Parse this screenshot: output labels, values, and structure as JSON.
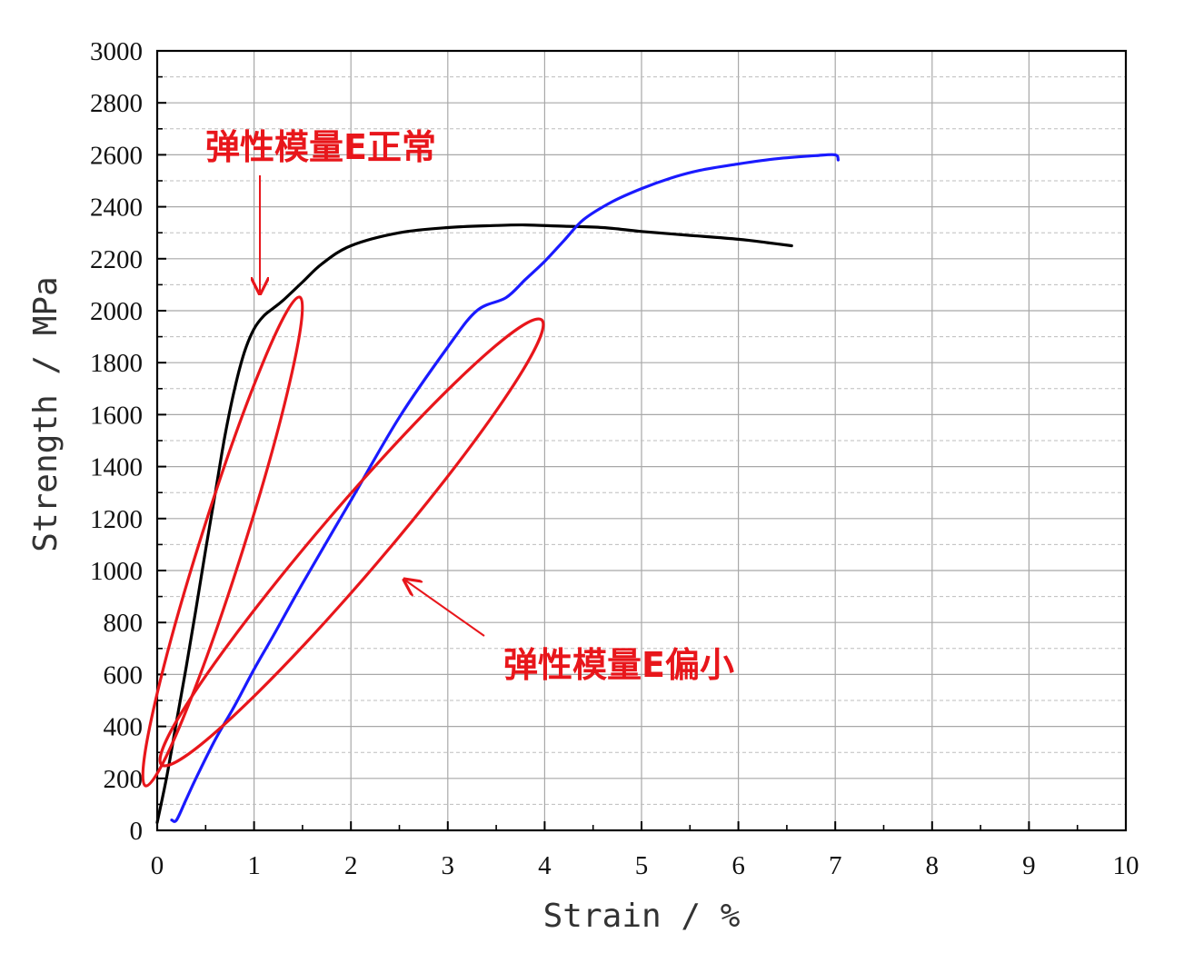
{
  "chart_data": {
    "type": "line",
    "xlabel": "Strain / %",
    "ylabel": "Strength / MPa",
    "xlim": [
      0,
      10
    ],
    "ylim": [
      0,
      3000
    ],
    "x_ticks": [
      0,
      1,
      2,
      3,
      4,
      5,
      6,
      7,
      8,
      9,
      10
    ],
    "y_ticks": [
      0,
      200,
      400,
      600,
      800,
      1000,
      1200,
      1400,
      1600,
      1800,
      2000,
      2200,
      2400,
      2600,
      2800,
      3000
    ],
    "grid": true,
    "series": [
      {
        "color": "#000000",
        "x": [
          0.0,
          0.1,
          0.2,
          0.3,
          0.4,
          0.5,
          0.6,
          0.7,
          0.8,
          0.9,
          1.0,
          1.1,
          1.2,
          1.3,
          1.5,
          1.7,
          2.0,
          2.5,
          3.0,
          3.5,
          3.8,
          4.2,
          4.6,
          5.0,
          5.5,
          6.0,
          6.3,
          6.55
        ],
        "y": [
          30,
          210,
          420,
          630,
          850,
          1080,
          1300,
          1520,
          1700,
          1840,
          1930,
          1980,
          2010,
          2040,
          2110,
          2180,
          2250,
          2300,
          2320,
          2328,
          2330,
          2325,
          2320,
          2305,
          2290,
          2275,
          2262,
          2250
        ]
      },
      {
        "color": "#1a1aff",
        "x": [
          0.15,
          0.2,
          0.3,
          0.4,
          0.6,
          0.8,
          1.0,
          1.2,
          1.5,
          2.0,
          2.5,
          3.0,
          3.3,
          3.6,
          3.8,
          4.0,
          4.2,
          4.4,
          4.7,
          5.0,
          5.3,
          5.6,
          6.0,
          6.4,
          6.8,
          7.0,
          7.03
        ],
        "y": [
          40,
          40,
          120,
          200,
          350,
          480,
          620,
          750,
          950,
          1270,
          1590,
          1860,
          2000,
          2050,
          2120,
          2190,
          2270,
          2350,
          2420,
          2470,
          2510,
          2540,
          2565,
          2585,
          2597,
          2600,
          2580
        ]
      }
    ],
    "annotations": [
      {
        "text": "弹性模量E正常"
      },
      {
        "text": "弹性模量E偏小"
      }
    ]
  }
}
